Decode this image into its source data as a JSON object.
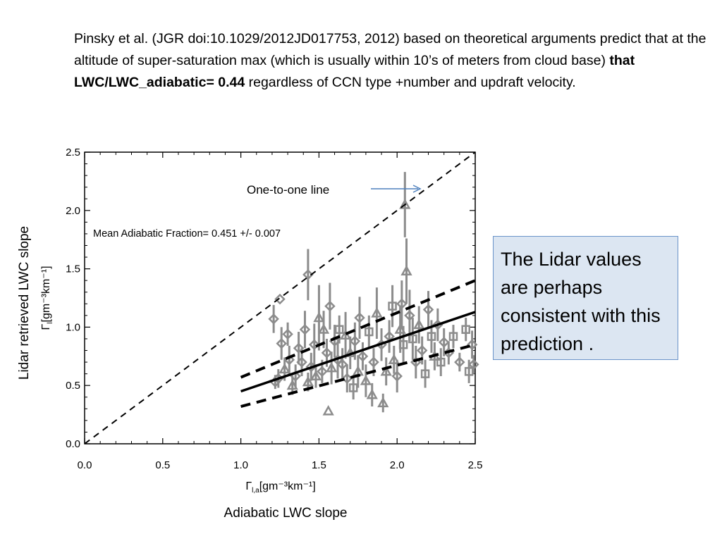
{
  "intro": {
    "part1": "Pinsky et al. (JGR doi:10.1029/2012JD017753, 2012) based on theoretical arguments predict that at the altitude of super-saturation max (which is usually within 10’s of meters from cloud base) ",
    "bold": "that LWC/LWC_adiabatic= 0.44",
    "part2": " regardless of CCN type +number and updraft velocity."
  },
  "outer_labels": {
    "y": "Lidar retrieved LWC slope",
    "x": "Adiabatic LWC slope"
  },
  "callout_text": "The Lidar values are perhaps consistent with this prediction .",
  "colors": {
    "points": "#8c8c8c",
    "fit_line": "#000000",
    "arrow": "#4f81bd",
    "callout_bg": "#dce6f2",
    "callout_border": "#6a93c9"
  },
  "chart_data": {
    "type": "scatter",
    "xlabel_symbol": "Γ",
    "xlabel_sub": "l,a",
    "xlabel_unit": "[gm⁻³km⁻¹]",
    "ylabel_symbol": "Γ",
    "ylabel_sub": "l",
    "ylabel_unit": "[gm⁻³km⁻¹]",
    "xlim": [
      0.0,
      2.5
    ],
    "ylim": [
      0.0,
      2.5
    ],
    "xticks": [
      "0.0",
      "0.5",
      "1.0",
      "1.5",
      "2.0",
      "2.5"
    ],
    "yticks": [
      "0.0",
      "0.5",
      "1.0",
      "1.5",
      "2.0",
      "2.5"
    ],
    "grid": false,
    "annotations": {
      "one_to_one": "One-to-one line",
      "mean_fraction": "Mean Adiabatic Fraction= 0.451 +/- 0.007"
    },
    "lines": {
      "one_to_one": {
        "x": [
          0.0,
          2.5
        ],
        "y": [
          0.0,
          2.5
        ]
      },
      "fit": {
        "x": [
          1.0,
          2.5
        ],
        "y": [
          0.45,
          1.13
        ]
      },
      "upper_bound": {
        "x": [
          1.0,
          2.5
        ],
        "y": [
          0.57,
          1.4
        ]
      },
      "lower_bound": {
        "x": [
          1.0,
          2.5
        ],
        "y": [
          0.32,
          0.85
        ]
      }
    },
    "points": [
      {
        "x": 1.21,
        "y": 1.07,
        "err": 0.12,
        "m": "d"
      },
      {
        "x": 1.22,
        "y": 0.53,
        "err": 0.06,
        "m": "d"
      },
      {
        "x": 1.24,
        "y": 0.56,
        "err": 0.08,
        "m": "d"
      },
      {
        "x": 1.25,
        "y": 1.24,
        "err": 0.0,
        "m": "d"
      },
      {
        "x": 1.26,
        "y": 0.86,
        "err": 0.14,
        "m": "d"
      },
      {
        "x": 1.28,
        "y": 0.64,
        "err": 0.1,
        "m": "t"
      },
      {
        "x": 1.3,
        "y": 0.94,
        "err": 0.1,
        "m": "d"
      },
      {
        "x": 1.31,
        "y": 0.72,
        "err": 0.12,
        "m": "d"
      },
      {
        "x": 1.33,
        "y": 0.5,
        "err": 0.08,
        "m": "t"
      },
      {
        "x": 1.35,
        "y": 0.58,
        "err": 0.1,
        "m": "d"
      },
      {
        "x": 1.37,
        "y": 0.82,
        "err": 0.14,
        "m": "d"
      },
      {
        "x": 1.39,
        "y": 0.7,
        "err": 0.12,
        "m": "d"
      },
      {
        "x": 1.41,
        "y": 0.98,
        "err": 0.16,
        "m": "d"
      },
      {
        "x": 1.43,
        "y": 1.45,
        "err": 0.22,
        "m": "d"
      },
      {
        "x": 1.43,
        "y": 0.53,
        "err": 0.08,
        "m": "t"
      },
      {
        "x": 1.45,
        "y": 0.66,
        "err": 0.12,
        "m": "d"
      },
      {
        "x": 1.47,
        "y": 0.85,
        "err": 0.18,
        "m": "d"
      },
      {
        "x": 1.48,
        "y": 0.58,
        "err": 0.1,
        "m": "t"
      },
      {
        "x": 1.5,
        "y": 1.08,
        "err": 0.28,
        "m": "t"
      },
      {
        "x": 1.52,
        "y": 0.62,
        "err": 0.1,
        "m": "d"
      },
      {
        "x": 1.53,
        "y": 0.98,
        "err": 0.16,
        "m": "t"
      },
      {
        "x": 1.55,
        "y": 0.78,
        "err": 0.12,
        "m": "d"
      },
      {
        "x": 1.56,
        "y": 0.28,
        "err": 0.0,
        "m": "t"
      },
      {
        "x": 1.57,
        "y": 1.18,
        "err": 0.2,
        "m": "d"
      },
      {
        "x": 1.58,
        "y": 0.65,
        "err": 0.14,
        "m": "t"
      },
      {
        "x": 1.6,
        "y": 0.88,
        "err": 0.14,
        "m": "d"
      },
      {
        "x": 1.62,
        "y": 0.72,
        "err": 0.16,
        "m": "d"
      },
      {
        "x": 1.63,
        "y": 0.98,
        "err": 0.12,
        "m": "s"
      },
      {
        "x": 1.65,
        "y": 0.68,
        "err": 0.14,
        "m": "d"
      },
      {
        "x": 1.67,
        "y": 0.93,
        "err": 0.2,
        "m": "t"
      },
      {
        "x": 1.68,
        "y": 0.56,
        "err": 0.12,
        "m": "d"
      },
      {
        "x": 1.7,
        "y": 0.78,
        "err": 0.14,
        "m": "t"
      },
      {
        "x": 1.72,
        "y": 0.48,
        "err": 0.1,
        "m": "s"
      },
      {
        "x": 1.73,
        "y": 0.88,
        "err": 0.16,
        "m": "d"
      },
      {
        "x": 1.75,
        "y": 0.62,
        "err": 0.14,
        "m": "t"
      },
      {
        "x": 1.76,
        "y": 1.08,
        "err": 0.18,
        "m": "d"
      },
      {
        "x": 1.78,
        "y": 0.75,
        "err": 0.12,
        "m": "d"
      },
      {
        "x": 1.8,
        "y": 0.54,
        "err": 0.14,
        "m": "t"
      },
      {
        "x": 1.82,
        "y": 0.96,
        "err": 0.14,
        "m": "s"
      },
      {
        "x": 1.84,
        "y": 0.42,
        "err": 0.1,
        "m": "t"
      },
      {
        "x": 1.85,
        "y": 0.7,
        "err": 0.12,
        "m": "d"
      },
      {
        "x": 1.87,
        "y": 1.12,
        "err": 0.22,
        "m": "t"
      },
      {
        "x": 1.9,
        "y": 0.85,
        "err": 0.14,
        "m": "d"
      },
      {
        "x": 1.91,
        "y": 0.35,
        "err": 0.08,
        "m": "t"
      },
      {
        "x": 1.93,
        "y": 0.62,
        "err": 0.12,
        "m": "t"
      },
      {
        "x": 1.95,
        "y": 0.92,
        "err": 0.14,
        "m": "d"
      },
      {
        "x": 1.97,
        "y": 1.18,
        "err": 0.18,
        "m": "s"
      },
      {
        "x": 1.98,
        "y": 0.72,
        "err": 0.12,
        "m": "t"
      },
      {
        "x": 2.0,
        "y": 0.58,
        "err": 0.14,
        "m": "d"
      },
      {
        "x": 2.02,
        "y": 0.98,
        "err": 0.2,
        "m": "t"
      },
      {
        "x": 2.03,
        "y": 1.2,
        "err": 0.2,
        "m": "d"
      },
      {
        "x": 2.04,
        "y": 0.85,
        "err": 0.16,
        "m": "s"
      },
      {
        "x": 2.05,
        "y": 2.05,
        "err": 0.28,
        "m": "t"
      },
      {
        "x": 2.06,
        "y": 1.48,
        "err": 0.28,
        "m": "t"
      },
      {
        "x": 2.08,
        "y": 1.1,
        "err": 0.22,
        "m": "d"
      },
      {
        "x": 2.1,
        "y": 0.9,
        "err": 0.18,
        "m": "s"
      },
      {
        "x": 2.12,
        "y": 0.7,
        "err": 0.14,
        "m": "d"
      },
      {
        "x": 2.14,
        "y": 1.02,
        "err": 0.16,
        "m": "t"
      },
      {
        "x": 2.16,
        "y": 0.8,
        "err": 0.12,
        "m": "d"
      },
      {
        "x": 2.18,
        "y": 0.6,
        "err": 0.12,
        "m": "s"
      },
      {
        "x": 2.2,
        "y": 1.15,
        "err": 0.16,
        "m": "d"
      },
      {
        "x": 2.22,
        "y": 0.92,
        "err": 0.14,
        "m": "s"
      },
      {
        "x": 2.24,
        "y": 0.75,
        "err": 0.12,
        "m": "t"
      },
      {
        "x": 2.26,
        "y": 1.02,
        "err": 0.14,
        "m": "d"
      },
      {
        "x": 2.28,
        "y": 0.7,
        "err": 0.12,
        "m": "s"
      },
      {
        "x": 2.3,
        "y": 0.87,
        "err": 0.12,
        "m": "d"
      },
      {
        "x": 2.33,
        "y": 0.78,
        "err": 0.1,
        "m": "d"
      },
      {
        "x": 2.36,
        "y": 0.92,
        "err": 0.1,
        "m": "s"
      },
      {
        "x": 2.4,
        "y": 0.7,
        "err": 0.08,
        "m": "d"
      },
      {
        "x": 2.44,
        "y": 0.98,
        "err": 0.1,
        "m": "s"
      },
      {
        "x": 2.46,
        "y": 0.62,
        "err": 0.1,
        "m": "s"
      },
      {
        "x": 2.48,
        "y": 0.85,
        "err": 0.12,
        "m": "d"
      },
      {
        "x": 2.49,
        "y": 0.68,
        "err": 0.08,
        "m": "d"
      }
    ]
  }
}
